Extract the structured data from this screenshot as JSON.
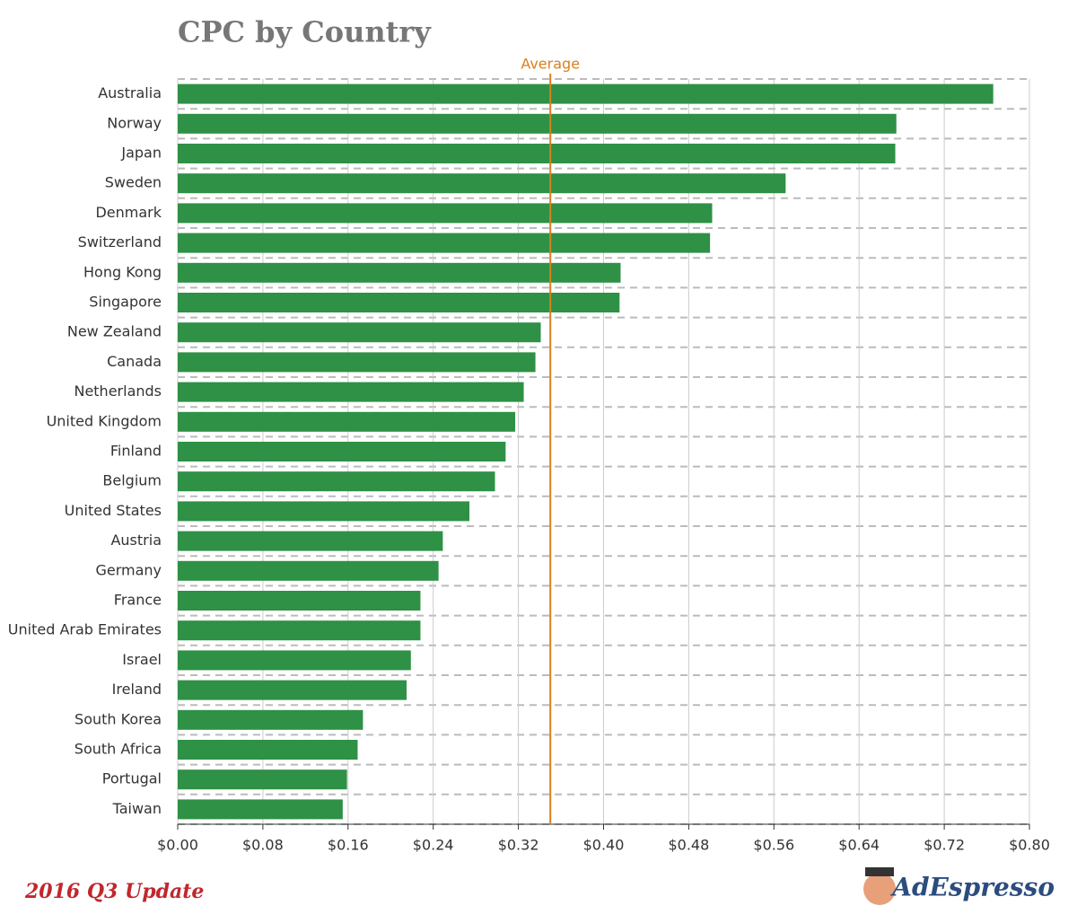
{
  "chart_data": {
    "type": "bar",
    "orientation": "horizontal",
    "title": "CPC by Country",
    "categories": [
      "Australia",
      "Norway",
      "Japan",
      "Sweden",
      "Denmark",
      "Switzerland",
      "Hong Kong",
      "Singapore",
      "New Zealand",
      "Canada",
      "Netherlands",
      "United Kingdom",
      "Finland",
      "Belgium",
      "United States",
      "Austria",
      "Germany",
      "France",
      "United Arab Emirates",
      "Israel",
      "Ireland",
      "South Korea",
      "South Africa",
      "Portugal",
      "Taiwan"
    ],
    "values": [
      0.766,
      0.675,
      0.674,
      0.571,
      0.502,
      0.5,
      0.416,
      0.415,
      0.341,
      0.336,
      0.325,
      0.317,
      0.308,
      0.298,
      0.274,
      0.249,
      0.245,
      0.228,
      0.228,
      0.219,
      0.215,
      0.174,
      0.169,
      0.159,
      0.155
    ],
    "color": "#2e9145",
    "xlim": [
      0,
      0.8
    ],
    "xticks": [
      {
        "value": 0,
        "label": "$0.00"
      },
      {
        "value": 0.08,
        "label": "$0.08"
      },
      {
        "value": 0.16,
        "label": "$0.16"
      },
      {
        "value": 0.24,
        "label": "$0.24"
      },
      {
        "value": 0.32,
        "label": "$0.32"
      },
      {
        "value": 0.4,
        "label": "$0.40"
      },
      {
        "value": 0.48,
        "label": "$0.48"
      },
      {
        "value": 0.56,
        "label": "$0.56"
      },
      {
        "value": 0.64,
        "label": "$0.64"
      },
      {
        "value": 0.72,
        "label": "$0.72"
      },
      {
        "value": 0.8,
        "label": "$0.80"
      }
    ],
    "grid": true,
    "average": {
      "label": "Average",
      "value": 0.35,
      "color": "#d9801e"
    },
    "footer": "2016 Q3 Update",
    "brand": "AdEspresso"
  }
}
